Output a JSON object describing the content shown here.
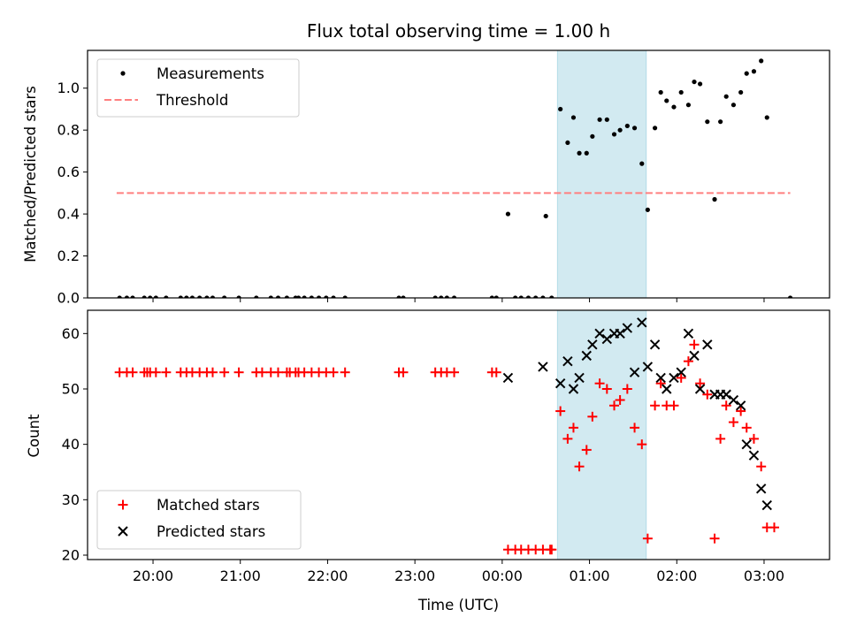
{
  "chart_data": [
    {
      "type": "scatter",
      "title": "Flux total observing time = 1.00 h",
      "xlabel": "",
      "ylabel": "Matched/Predicted stars",
      "xlim": [
        -28.5,
        22.5
      ],
      "ylim": [
        0,
        1.18
      ],
      "yticks": [
        0.0,
        0.2,
        0.4,
        0.6,
        0.8,
        1.0
      ],
      "ytick_labels": [
        "0.0",
        "0.2",
        "0.4",
        "0.6",
        "0.8",
        "1.0"
      ],
      "x_unit": "minutes relative to 00:00 UTC (axis shows clock time)",
      "shaded_interval": [
        3.8,
        9.9
      ],
      "shade_color": "#add8e6",
      "legend": {
        "placement": "upper-left",
        "entries": [
          "Measurements",
          "Threshold"
        ]
      },
      "threshold": {
        "name": "Threshold",
        "value": 0.5,
        "x_range": [
          -26.5,
          19.8
        ],
        "color": "#ff7f7f"
      },
      "series": [
        {
          "name": "Measurements",
          "color": "#000000",
          "marker": "dot",
          "points": [
            [
              -26.3,
              0
            ],
            [
              -25.8,
              0
            ],
            [
              -25.4,
              0
            ],
            [
              -24.6,
              0
            ],
            [
              -24.2,
              0
            ],
            [
              -23.8,
              0
            ],
            [
              -23.1,
              0
            ],
            [
              -22.1,
              0
            ],
            [
              -21.7,
              0
            ],
            [
              -21.3,
              0
            ],
            [
              -20.8,
              0
            ],
            [
              -20.3,
              0
            ],
            [
              -19.9,
              0
            ],
            [
              -19.1,
              0
            ],
            [
              -18.1,
              0
            ],
            [
              -16.9,
              0
            ],
            [
              -15.9,
              0
            ],
            [
              -15.4,
              0
            ],
            [
              -14.8,
              0
            ],
            [
              -14.2,
              0
            ],
            [
              -14.0,
              0
            ],
            [
              -13.6,
              0
            ],
            [
              -13.1,
              0
            ],
            [
              -12.6,
              0
            ],
            [
              -12.1,
              0
            ],
            [
              -11.6,
              0
            ],
            [
              -10.8,
              0
            ],
            [
              -7.1,
              0
            ],
            [
              -6.8,
              0
            ],
            [
              -4.6,
              0
            ],
            [
              -4.2,
              0
            ],
            [
              -3.8,
              0
            ],
            [
              -3.3,
              0
            ],
            [
              -0.7,
              0
            ],
            [
              -0.4,
              0
            ],
            [
              0.4,
              0.4
            ],
            [
              0.9,
              0
            ],
            [
              1.3,
              0
            ],
            [
              1.8,
              0
            ],
            [
              2.3,
              0
            ],
            [
              2.8,
              0
            ],
            [
              3.0,
              0.39
            ],
            [
              3.4,
              0
            ],
            [
              4.0,
              0.9
            ],
            [
              4.5,
              0.74
            ],
            [
              4.9,
              0.86
            ],
            [
              5.3,
              0.69
            ],
            [
              5.8,
              0.69
            ],
            [
              6.2,
              0.77
            ],
            [
              6.7,
              0.85
            ],
            [
              7.2,
              0.85
            ],
            [
              7.7,
              0.78
            ],
            [
              8.1,
              0.8
            ],
            [
              8.6,
              0.82
            ],
            [
              9.1,
              0.81
            ],
            [
              9.6,
              0.64
            ],
            [
              10.0,
              0.42
            ],
            [
              10.5,
              0.81
            ],
            [
              10.9,
              0.98
            ],
            [
              11.3,
              0.94
            ],
            [
              11.8,
              0.91
            ],
            [
              12.3,
              0.98
            ],
            [
              12.8,
              0.92
            ],
            [
              13.2,
              1.03
            ],
            [
              13.6,
              1.02
            ],
            [
              14.1,
              0.84
            ],
            [
              14.6,
              0.47
            ],
            [
              15.0,
              0.84
            ],
            [
              15.4,
              0.96
            ],
            [
              15.9,
              0.92
            ],
            [
              16.4,
              0.98
            ],
            [
              16.8,
              1.07
            ],
            [
              17.3,
              1.08
            ],
            [
              17.8,
              1.13
            ],
            [
              18.2,
              0.86
            ],
            [
              19.8,
              0
            ]
          ]
        }
      ]
    },
    {
      "type": "scatter",
      "title": "",
      "xlabel": "Time (UTC)",
      "ylabel": "Count",
      "xlim": [
        -28.5,
        22.5
      ],
      "ylim": [
        19.2,
        64.2
      ],
      "yticks": [
        20,
        30,
        40,
        50,
        60
      ],
      "ytick_labels": [
        "20",
        "30",
        "40",
        "50",
        "60"
      ],
      "xticks": [
        -24,
        -18,
        -12,
        -6,
        0,
        6,
        12,
        18
      ],
      "xtick_labels": [
        "20:00",
        "21:00",
        "22:00",
        "23:00",
        "00:00",
        "01:00",
        "02:00",
        "03:00"
      ],
      "shaded_interval": [
        3.8,
        9.9
      ],
      "legend": {
        "placement": "lower-left",
        "entries": [
          "Matched stars",
          "Predicted stars"
        ]
      },
      "series": [
        {
          "name": "Matched stars",
          "color": "#ff0000",
          "marker": "plus",
          "points": [
            [
              -26.3,
              53
            ],
            [
              -25.8,
              53
            ],
            [
              -25.4,
              53
            ],
            [
              -24.6,
              53
            ],
            [
              -24.4,
              53
            ],
            [
              -24.2,
              53
            ],
            [
              -23.8,
              53
            ],
            [
              -23.1,
              53
            ],
            [
              -22.1,
              53
            ],
            [
              -21.7,
              53
            ],
            [
              -21.3,
              53
            ],
            [
              -20.8,
              53
            ],
            [
              -20.3,
              53
            ],
            [
              -19.9,
              53
            ],
            [
              -19.1,
              53
            ],
            [
              -18.1,
              53
            ],
            [
              -16.9,
              53
            ],
            [
              -16.5,
              53
            ],
            [
              -15.9,
              53
            ],
            [
              -15.4,
              53
            ],
            [
              -14.8,
              53
            ],
            [
              -14.6,
              53
            ],
            [
              -14.2,
              53
            ],
            [
              -14.0,
              53
            ],
            [
              -13.6,
              53
            ],
            [
              -13.1,
              53
            ],
            [
              -12.6,
              53
            ],
            [
              -12.1,
              53
            ],
            [
              -11.6,
              53
            ],
            [
              -10.8,
              53
            ],
            [
              -7.1,
              53
            ],
            [
              -6.8,
              53
            ],
            [
              -4.6,
              53
            ],
            [
              -4.2,
              53
            ],
            [
              -3.8,
              53
            ],
            [
              -3.3,
              53
            ],
            [
              -0.7,
              53
            ],
            [
              -0.4,
              53
            ],
            [
              0.4,
              21
            ],
            [
              0.9,
              21
            ],
            [
              1.3,
              21
            ],
            [
              1.8,
              21
            ],
            [
              2.3,
              21
            ],
            [
              2.8,
              21
            ],
            [
              3.3,
              21
            ],
            [
              3.4,
              21
            ],
            [
              4.0,
              46
            ],
            [
              4.5,
              41
            ],
            [
              4.9,
              43
            ],
            [
              5.3,
              36
            ],
            [
              5.8,
              39
            ],
            [
              6.2,
              45
            ],
            [
              6.7,
              51
            ],
            [
              7.2,
              50
            ],
            [
              7.7,
              47
            ],
            [
              8.1,
              48
            ],
            [
              8.6,
              50
            ],
            [
              9.1,
              43
            ],
            [
              9.6,
              40
            ],
            [
              10.0,
              23
            ],
            [
              10.5,
              47
            ],
            [
              10.9,
              51
            ],
            [
              11.3,
              47
            ],
            [
              11.8,
              47
            ],
            [
              12.3,
              52
            ],
            [
              12.8,
              55
            ],
            [
              13.2,
              58
            ],
            [
              13.6,
              51
            ],
            [
              14.1,
              49
            ],
            [
              14.6,
              23
            ],
            [
              15.0,
              41
            ],
            [
              15.4,
              47
            ],
            [
              15.9,
              44
            ],
            [
              16.4,
              46
            ],
            [
              16.8,
              43
            ],
            [
              17.3,
              41
            ],
            [
              17.8,
              36
            ],
            [
              18.2,
              25
            ],
            [
              18.7,
              25
            ]
          ]
        },
        {
          "name": "Predicted stars",
          "color": "#000000",
          "marker": "x",
          "points": [
            [
              0.4,
              52
            ],
            [
              2.8,
              54
            ],
            [
              4.0,
              51
            ],
            [
              4.5,
              55
            ],
            [
              4.9,
              50
            ],
            [
              5.3,
              52
            ],
            [
              5.8,
              56
            ],
            [
              6.2,
              58
            ],
            [
              6.7,
              60
            ],
            [
              7.2,
              59
            ],
            [
              7.7,
              60
            ],
            [
              8.1,
              60
            ],
            [
              8.6,
              61
            ],
            [
              9.1,
              53
            ],
            [
              9.6,
              62
            ],
            [
              10.0,
              54
            ],
            [
              10.5,
              58
            ],
            [
              10.9,
              52
            ],
            [
              11.3,
              50
            ],
            [
              11.8,
              52
            ],
            [
              12.3,
              53
            ],
            [
              12.8,
              60
            ],
            [
              13.2,
              56
            ],
            [
              13.6,
              50
            ],
            [
              14.1,
              58
            ],
            [
              14.6,
              49
            ],
            [
              15.0,
              49
            ],
            [
              15.4,
              49
            ],
            [
              15.9,
              48
            ],
            [
              16.4,
              47
            ],
            [
              16.8,
              40
            ],
            [
              17.3,
              38
            ],
            [
              17.8,
              32
            ],
            [
              18.2,
              29
            ]
          ]
        }
      ]
    }
  ]
}
